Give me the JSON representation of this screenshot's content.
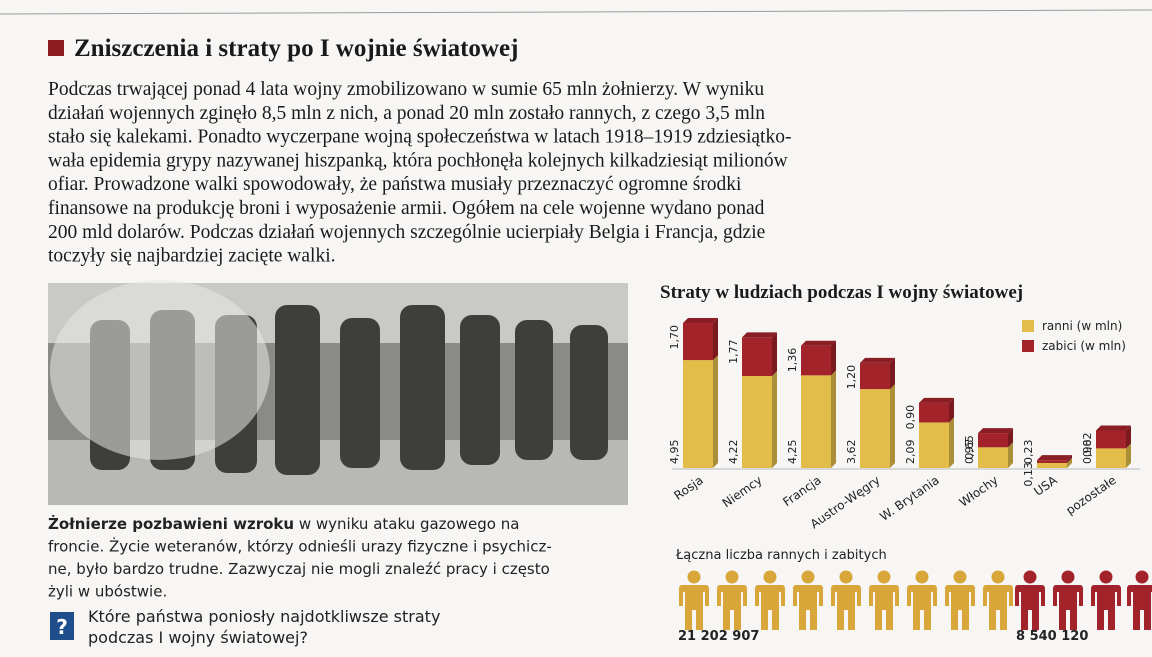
{
  "header": {
    "title": "Zniszczenia i straty po I wojnie światowej"
  },
  "body": {
    "lines": [
      "Podczas trwającej ponad 4 lata wojny zmobilizowano w sumie 65 mln żołnierzy. W wyniku",
      "działań wojennych zginęło 8,5 mln z nich, a ponad 20 mln zostało rannych, z czego 3,5 mln",
      "stało się kalekami. Ponadto wyczerpane wojną społeczeństwa w latach 1918–1919 zdziesiątko-",
      "wała epidemia grypy nazywanej hiszpanką, która pochłonęła kolejnych kilkadziesiąt milionów",
      "ofiar. Prowadzone walki spowodowały, że państwa musiały przeznaczyć ogromne środki",
      "finansowe na produkcję broni i wyposażenie armii. Ogółem na cele wojenne wydano ponad",
      "200 mld dolarów. Podczas działań wojennych szczególnie ucierpiały Belgia i Francja, gdzie",
      "toczyły się najbardziej zacięte walki."
    ]
  },
  "photo_caption": {
    "bold": "Żołnierze pozbawieni wzroku",
    "lines": [
      "w wyniku ataku gazowego na",
      "froncie. Życie weteranów, którzy odnieśli urazy fizyczne i psychicz-",
      "ne, było bardzo trudne. Zazwyczaj nie mogli znaleźć pracy i często",
      "żyli w ubóstwie."
    ]
  },
  "question": {
    "icon": "?",
    "lines": [
      "Które państwa poniosły najdotkliwsze straty",
      "podczas I wojny światowej?"
    ]
  },
  "chart_data": {
    "type": "bar",
    "stacked": true,
    "title": "Straty w ludziach podczas I wojny światowej",
    "categories": [
      "Rosja",
      "Niemcy",
      "Francja",
      "Austro-Węgry",
      "W. Brytania",
      "Włochy",
      "USA",
      "pozostałe"
    ],
    "series": [
      {
        "name": "ranni (w mln)",
        "color": "#e3bd4a",
        "values": [
          4.95,
          4.22,
          4.25,
          3.62,
          2.09,
          0.95,
          0.23,
          0.9
        ],
        "value_labels": [
          "4,95",
          "4,22",
          "4,25",
          "3,62",
          "2,09",
          "0,95",
          "0,23",
          "0,90"
        ]
      },
      {
        "name": "zabici (w mln)",
        "color": "#a3232a",
        "values": [
          1.7,
          1.77,
          1.36,
          1.2,
          0.9,
          0.65,
          0.13,
          0.82
        ],
        "value_labels": [
          "1,70",
          "1,77",
          "1,36",
          "1,20",
          "0,90",
          "0,65",
          "0,13",
          "0,82"
        ]
      }
    ],
    "legend": "upper right"
  },
  "totals": {
    "title": "Łączna liczba rannych i zabitych",
    "wounded": "21 202 907",
    "killed": "8 540 120"
  }
}
